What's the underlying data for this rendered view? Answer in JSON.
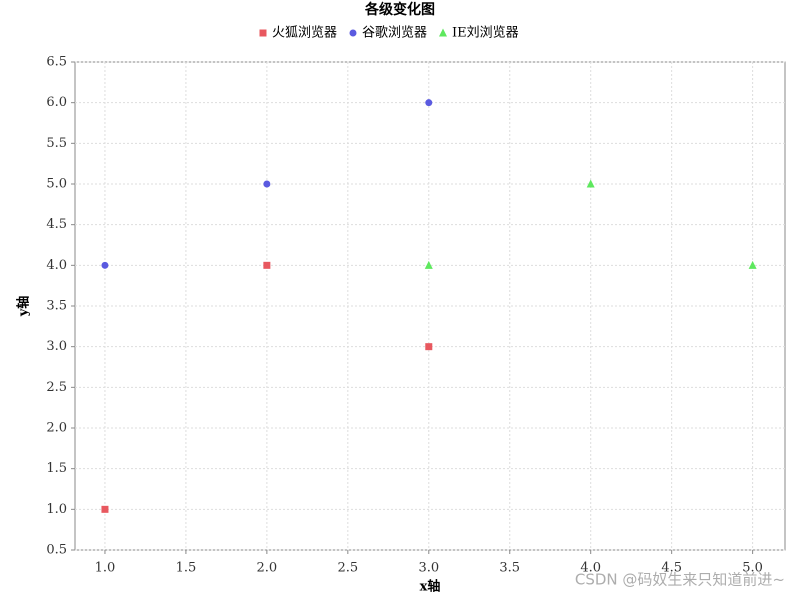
{
  "chart_data": {
    "type": "scatter",
    "title": "各级变化图",
    "xlabel": "x轴",
    "ylabel": "y轴",
    "series": [
      {
        "name": "火狐浏览器",
        "color": "#e8585f",
        "marker": "square",
        "x": [
          1,
          2,
          3
        ],
        "values": [
          1,
          4,
          3
        ]
      },
      {
        "name": "谷歌浏览器",
        "color": "#5a5ae0",
        "marker": "circle",
        "x": [
          1,
          2,
          3
        ],
        "values": [
          4,
          5,
          6
        ]
      },
      {
        "name": "IE刘浏览器",
        "color": "#5ee85e",
        "marker": "triangle",
        "x": [
          3,
          4,
          5
        ],
        "values": [
          4,
          5,
          4
        ]
      }
    ],
    "xlim": [
      0.815,
      5.2
    ],
    "xticks": [
      {
        "value": 1,
        "label": "1.0"
      },
      1.5,
      {
        "value": 2,
        "label": "2.0"
      },
      2.5,
      {
        "value": 3,
        "label": "3.0"
      },
      3.5,
      {
        "value": 4,
        "label": "4.0"
      },
      4.5,
      {
        "value": 5,
        "label": "5.0"
      }
    ],
    "ylim": [
      0.5,
      6.5
    ],
    "yticks": [
      0.5,
      {
        "value": 1,
        "label": "1.0"
      },
      1.5,
      {
        "value": 2,
        "label": "2.0"
      },
      2.5,
      {
        "value": 3,
        "label": "3.0"
      },
      3.5,
      {
        "value": 4,
        "label": "4.0"
      },
      4.5,
      {
        "value": 5,
        "label": "5.0"
      },
      5.5,
      {
        "value": 6,
        "label": "6.0"
      },
      6.5
    ],
    "grid": true,
    "legend": "top",
    "watermark": "CSDN @码奴生来只知道前进~"
  }
}
